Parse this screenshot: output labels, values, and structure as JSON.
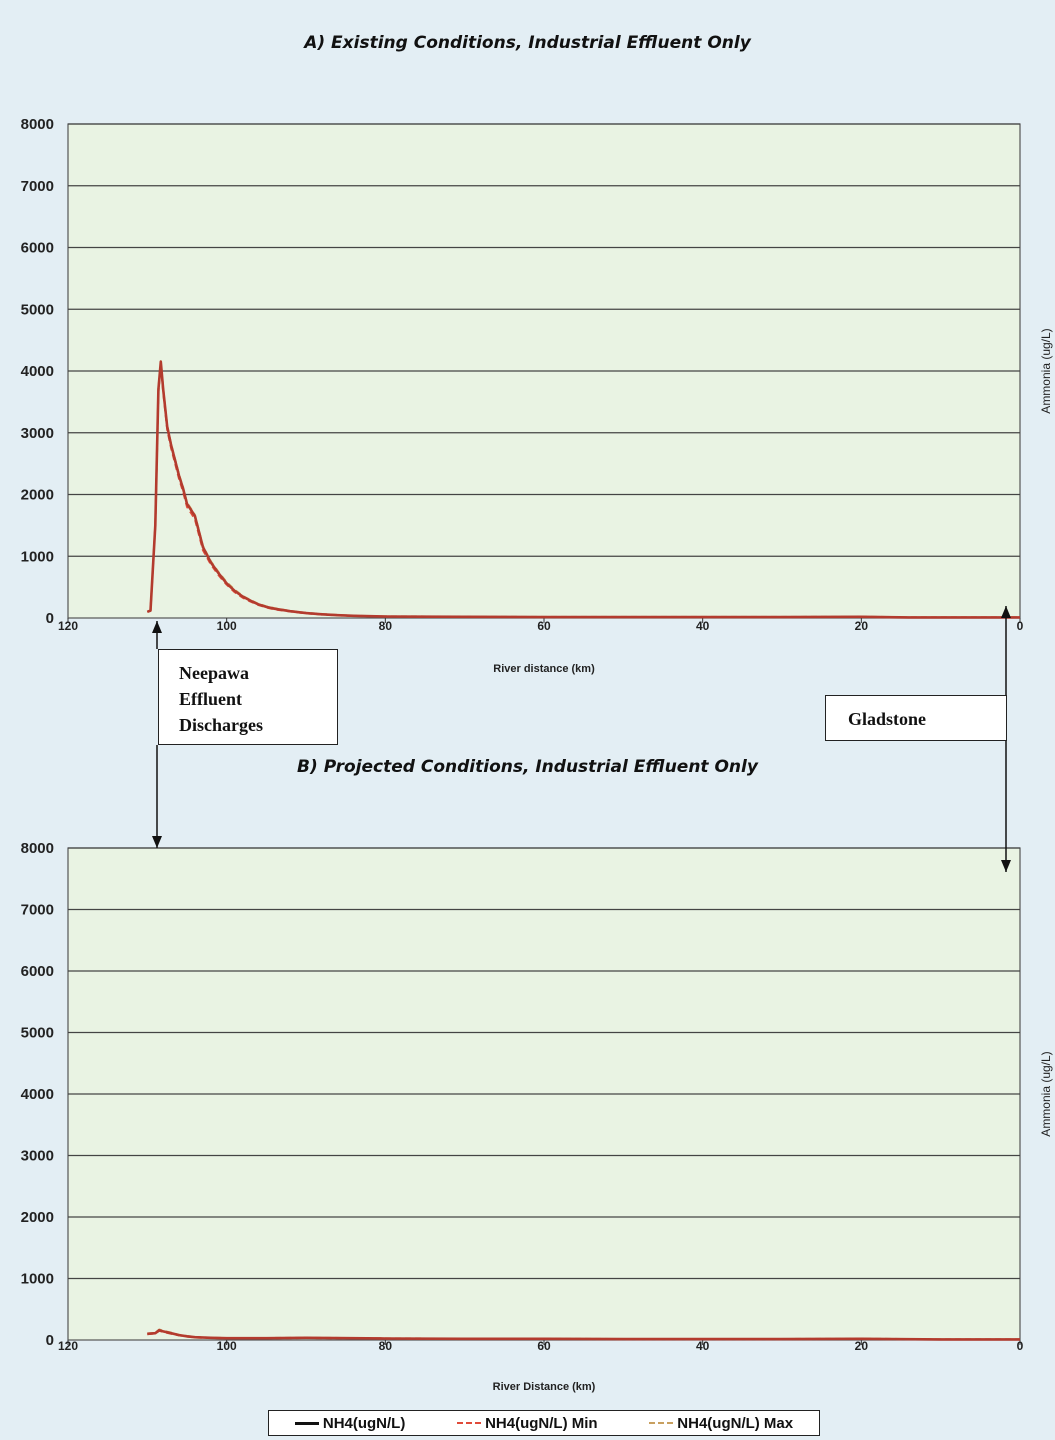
{
  "panels": {
    "a_title": "A)  Existing Conditions, Industrial Effluent Only",
    "b_title": "B)  Projected Conditions, Industrial Effluent Only"
  },
  "annotations": {
    "neepawa": [
      "Neepawa",
      "Effluent",
      "Discharges"
    ],
    "gladstone": "Gladstone"
  },
  "legend": {
    "items": [
      {
        "label": "NH4(ugN/L)",
        "color": "#111111",
        "style": "solid"
      },
      {
        "label": "NH4(ugN/L) Min",
        "color": "#e04b3a",
        "style": "dashed"
      },
      {
        "label": "NH4(ugN/L) Max",
        "color": "#c8a060",
        "style": "dashed"
      }
    ]
  },
  "chart_data": [
    {
      "type": "line",
      "title": "A)  Existing Conditions, Industrial Effluent Only",
      "xlabel": "River distance (km)",
      "ylabel": "Ammonia (ug/L)",
      "xlim": [
        120,
        0
      ],
      "ylim": [
        0,
        8000
      ],
      "xticks": [
        120,
        100,
        80,
        60,
        40,
        20,
        0
      ],
      "yticks": [
        0,
        1000,
        2000,
        3000,
        4000,
        5000,
        6000,
        7000,
        8000
      ],
      "grid": true,
      "x": [
        110,
        109.6,
        109,
        108.6,
        108.3,
        108,
        107.5,
        107,
        106.5,
        106,
        105.5,
        105,
        104.5,
        104,
        103.5,
        103,
        102,
        101,
        100,
        99,
        98,
        97,
        96,
        95,
        94,
        92,
        90,
        88,
        86,
        84,
        80,
        70,
        60,
        50,
        40,
        30,
        20,
        14,
        10,
        5,
        0
      ],
      "series": [
        {
          "name": "NH4(ugN/L)",
          "values": [
            100,
            120,
            1500,
            3700,
            4150,
            3700,
            3100,
            2800,
            2550,
            2300,
            2100,
            1850,
            1750,
            1650,
            1400,
            1150,
            900,
            720,
            560,
            440,
            350,
            280,
            220,
            180,
            150,
            110,
            80,
            60,
            45,
            35,
            25,
            20,
            15,
            15,
            15,
            15,
            20,
            10,
            10,
            10,
            10
          ]
        },
        {
          "name": "NH4(ugN/L) Min",
          "values": [
            100,
            120,
            1500,
            3650,
            4100,
            3650,
            3050,
            2750,
            2500,
            2250,
            2050,
            1800,
            1700,
            1600,
            1350,
            1100,
            870,
            690,
            540,
            420,
            330,
            265,
            210,
            170,
            140,
            105,
            75,
            55,
            42,
            32,
            22,
            18,
            14,
            14,
            14,
            14,
            18,
            8,
            8,
            8,
            8
          ]
        },
        {
          "name": "NH4(ugN/L) Max",
          "values": [
            100,
            120,
            1500,
            3720,
            4160,
            3720,
            3120,
            2820,
            2570,
            2320,
            2120,
            1870,
            1770,
            1670,
            1420,
            1170,
            920,
            740,
            580,
            460,
            360,
            290,
            230,
            190,
            160,
            115,
            85,
            65,
            50,
            38,
            28,
            22,
            18,
            18,
            18,
            18,
            22,
            12,
            12,
            12,
            12
          ]
        }
      ]
    },
    {
      "type": "line",
      "title": "B)  Projected Conditions, Industrial Effluent Only",
      "xlabel": "River Distance (km)",
      "ylabel": "Ammonia (ug/L)",
      "xlim": [
        120,
        0
      ],
      "ylim": [
        0,
        8000
      ],
      "xticks": [
        120,
        100,
        80,
        60,
        40,
        20,
        0
      ],
      "yticks": [
        0,
        1000,
        2000,
        3000,
        4000,
        5000,
        6000,
        7000,
        8000
      ],
      "grid": true,
      "x": [
        110,
        109,
        108.5,
        108,
        107,
        106,
        105,
        104,
        102,
        100,
        95,
        90,
        80,
        70,
        60,
        50,
        40,
        30,
        20,
        10,
        0
      ],
      "series": [
        {
          "name": "NH4(ugN/L)",
          "values": [
            100,
            110,
            160,
            140,
            110,
            80,
            60,
            45,
            35,
            30,
            30,
            35,
            25,
            20,
            20,
            15,
            15,
            15,
            20,
            10,
            10
          ]
        },
        {
          "name": "NH4(ugN/L) Min",
          "values": [
            95,
            105,
            150,
            130,
            100,
            75,
            55,
            40,
            32,
            28,
            28,
            32,
            22,
            18,
            18,
            13,
            13,
            13,
            18,
            8,
            8
          ]
        },
        {
          "name": "NH4(ugN/L) Max",
          "values": [
            105,
            115,
            170,
            150,
            120,
            85,
            65,
            50,
            38,
            33,
            33,
            38,
            28,
            22,
            22,
            17,
            17,
            17,
            22,
            12,
            12
          ]
        }
      ]
    }
  ]
}
